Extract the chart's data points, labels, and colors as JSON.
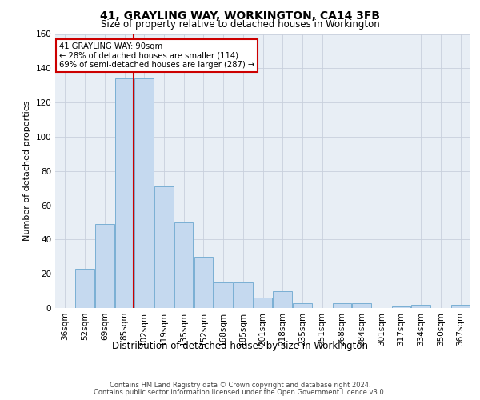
{
  "title": "41, GRAYLING WAY, WORKINGTON, CA14 3FB",
  "subtitle": "Size of property relative to detached houses in Workington",
  "xlabel": "Distribution of detached houses by size in Workington",
  "ylabel": "Number of detached properties",
  "categories": [
    "36sqm",
    "52sqm",
    "69sqm",
    "85sqm",
    "102sqm",
    "119sqm",
    "135sqm",
    "152sqm",
    "168sqm",
    "185sqm",
    "201sqm",
    "218sqm",
    "235sqm",
    "251sqm",
    "268sqm",
    "284sqm",
    "301sqm",
    "317sqm",
    "334sqm",
    "350sqm",
    "367sqm"
  ],
  "values": [
    0,
    23,
    49,
    134,
    134,
    71,
    50,
    30,
    15,
    15,
    6,
    10,
    3,
    0,
    3,
    3,
    0,
    1,
    2,
    0,
    2
  ],
  "bar_color": "#c5d9ef",
  "bar_edge_color": "#7aafd4",
  "property_line_idx": 3,
  "property_line_color": "#cc0000",
  "annotation_line1": "41 GRAYLING WAY: 90sqm",
  "annotation_line2": "← 28% of detached houses are smaller (114)",
  "annotation_line3": "69% of semi-detached houses are larger (287) →",
  "annotation_box_color": "#ffffff",
  "annotation_box_edge_color": "#cc0000",
  "ylim": [
    0,
    160
  ],
  "yticks": [
    0,
    20,
    40,
    60,
    80,
    100,
    120,
    140,
    160
  ],
  "grid_color": "#c8d0dc",
  "background_color": "#e8eef5",
  "title_fontsize": 10,
  "subtitle_fontsize": 8.5,
  "ylabel_fontsize": 8,
  "xlabel_fontsize": 8.5,
  "tick_fontsize": 7.5,
  "footer_line1": "Contains HM Land Registry data © Crown copyright and database right 2024.",
  "footer_line2": "Contains public sector information licensed under the Open Government Licence v3.0.",
  "footer_fontsize": 6.0
}
